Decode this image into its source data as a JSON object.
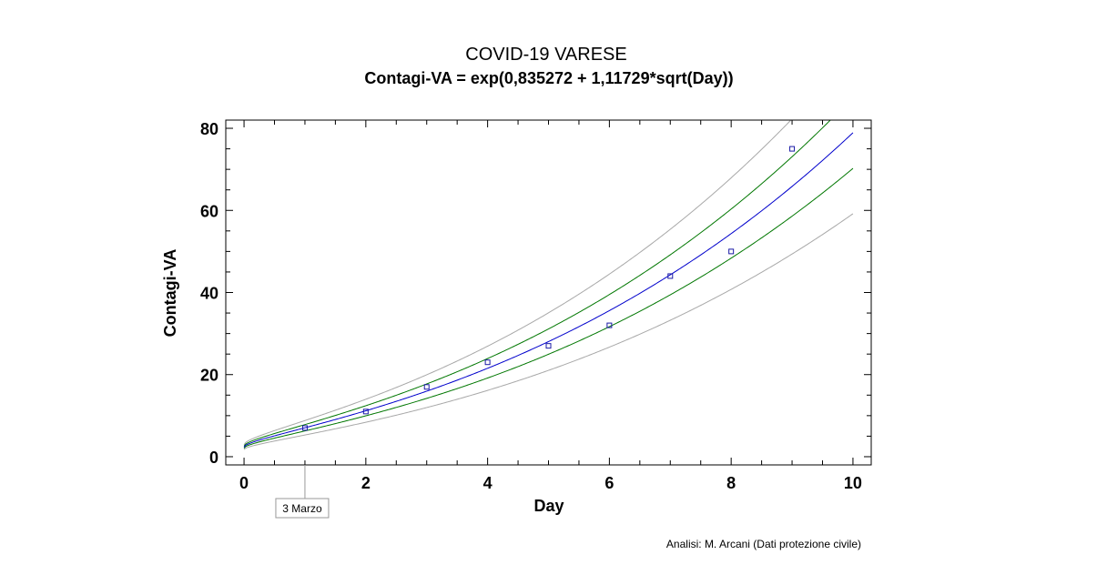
{
  "chart_data": {
    "type": "scatter",
    "title": "COVID-19 VARESE",
    "subtitle": "Contagi-VA = exp(0,835272 + 1,11729*sqrt(Day))",
    "xlabel": "Day",
    "ylabel": "Contagi-VA",
    "xlim": [
      -0.3,
      10.3
    ],
    "ylim": [
      -2,
      82
    ],
    "xticks": [
      0,
      2,
      4,
      6,
      8,
      10
    ],
    "yticks": [
      0,
      20,
      40,
      60,
      80
    ],
    "grid": false,
    "points": {
      "x": [
        1,
        2,
        3,
        4,
        5,
        6,
        7,
        8,
        9
      ],
      "y": [
        7,
        11,
        17,
        23,
        27,
        32,
        44,
        50,
        75
      ],
      "color": "#1a1aa6"
    },
    "model": {
      "a": 0.835272,
      "b": 1.11729,
      "color": "#0000cc"
    },
    "inner_band": {
      "factor": 0.11,
      "color": "#007700"
    },
    "outer_band": {
      "factor": 0.25,
      "color": "#a8a8a8"
    },
    "annotation": {
      "x": 1,
      "label": "3 Marzo"
    },
    "footnote": "Analisi: M. Arcani (Dati protezione civile)"
  }
}
